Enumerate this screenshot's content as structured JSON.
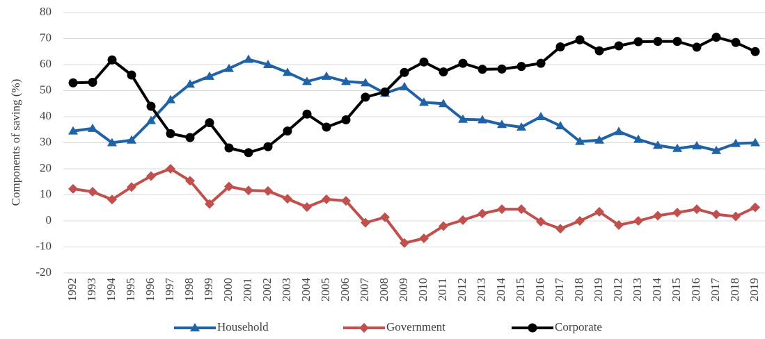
{
  "chart_data": {
    "type": "line",
    "y_label": "Components of saving (%)",
    "categories": [
      "1992",
      "1993",
      "1994",
      "1995",
      "1996",
      "1997",
      "1998",
      "1999",
      "2000",
      "2001",
      "2002",
      "2003",
      "2004",
      "2005",
      "2006",
      "2007",
      "2008",
      "2009",
      "2010",
      "2011",
      "2012",
      "2013",
      "2014",
      "2015",
      "2016",
      "2017",
      "2018",
      "2019",
      "2012",
      "2013",
      "2014",
      "2015",
      "2016",
      "2017",
      "2018",
      "2019"
    ],
    "series": [
      {
        "name": "Household",
        "color": "#1f63a6",
        "marker": "triangle",
        "values": [
          34.5,
          35.5,
          30,
          31,
          38.5,
          46.5,
          52.5,
          55.5,
          58.5,
          62,
          60,
          57,
          53.5,
          55.5,
          53.5,
          53,
          49,
          51.5,
          45.5,
          45,
          39,
          38.8,
          37,
          36,
          40,
          36.5,
          30.5,
          31,
          34.3,
          31.3,
          29,
          27.8,
          28.8,
          27,
          29.7,
          30
        ]
      },
      {
        "name": "Government",
        "color": "#c0504d",
        "marker": "diamond",
        "values": [
          12.3,
          11.2,
          8.2,
          13,
          17.2,
          20,
          15.4,
          6.5,
          13.2,
          11.7,
          11.5,
          8.5,
          5.3,
          8.3,
          7.7,
          -0.7,
          1.4,
          -8.5,
          -6.7,
          -2,
          0.3,
          2.8,
          4.5,
          4.5,
          -0.3,
          -3,
          0,
          3.5,
          -1.6,
          0,
          2,
          3.2,
          4.5,
          2.5,
          1.7,
          5.2
        ]
      },
      {
        "name": "Corporate",
        "color": "#000000",
        "marker": "circle",
        "values": [
          53,
          53.2,
          61.8,
          56,
          44,
          33.5,
          32,
          37.7,
          28,
          26.2,
          28.5,
          34.5,
          41,
          36,
          38.8,
          47.5,
          49.5,
          57,
          61,
          57.2,
          60.5,
          58.2,
          58.3,
          59.3,
          60.5,
          66.8,
          69.5,
          65.3,
          67.2,
          68.8,
          68.9,
          68.9,
          66.7,
          70.5,
          68.5,
          65
        ]
      }
    ],
    "ylim": [
      -20,
      80
    ],
    "yticks": [
      -20,
      -10,
      0,
      10,
      20,
      30,
      40,
      50,
      60,
      70,
      80
    ],
    "grid": true,
    "legend": "bottom"
  }
}
